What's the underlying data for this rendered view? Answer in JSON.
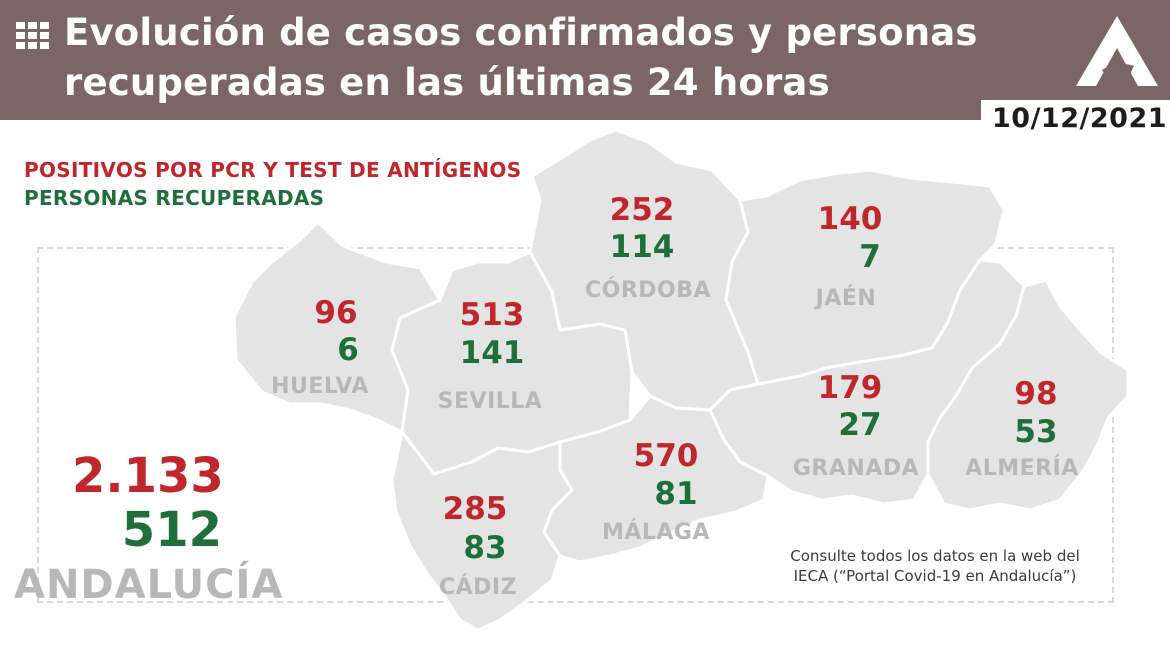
{
  "header": {
    "title_line1": "Evolución de casos confirmados y personas",
    "title_line2": "recuperadas en las últimas 24 horas",
    "date": "10/12/2021",
    "background_color": "#7b6566",
    "logo_icon": "junta-andalucia-logo-icon",
    "grid_icon": "grid-icon"
  },
  "legend": {
    "positives_label": "POSITIVOS POR PCR Y TEST DE ANTÍGENOS",
    "recovered_label": "PERSONAS RECUPERADAS",
    "positives_color": "#c0272d",
    "recovered_color": "#1f6f3a"
  },
  "provinces": {
    "huelva": {
      "name": "HUELVA",
      "positives": "96",
      "recovered": "6"
    },
    "sevilla": {
      "name": "SEVILLA",
      "positives": "513",
      "recovered": "141"
    },
    "cordoba": {
      "name": "CÓRDOBA",
      "positives": "252",
      "recovered": "114"
    },
    "jaen": {
      "name": "JAÉN",
      "positives": "140",
      "recovered": "7"
    },
    "granada": {
      "name": "GRANADA",
      "positives": "179",
      "recovered": "27"
    },
    "almeria": {
      "name": "ALMERÍA",
      "positives": "98",
      "recovered": "53"
    },
    "malaga": {
      "name": "MÁLAGA",
      "positives": "570",
      "recovered": "81"
    },
    "cadiz": {
      "name": "CÁDIZ",
      "positives": "285",
      "recovered": "83"
    }
  },
  "total": {
    "name": "ANDALUCÍA",
    "positives": "2.133",
    "recovered": "512"
  },
  "note": {
    "line1": "Consulte todos los datos en la web del",
    "line2": "IECA (“Portal Covid-19 en Andalucía”)"
  }
}
